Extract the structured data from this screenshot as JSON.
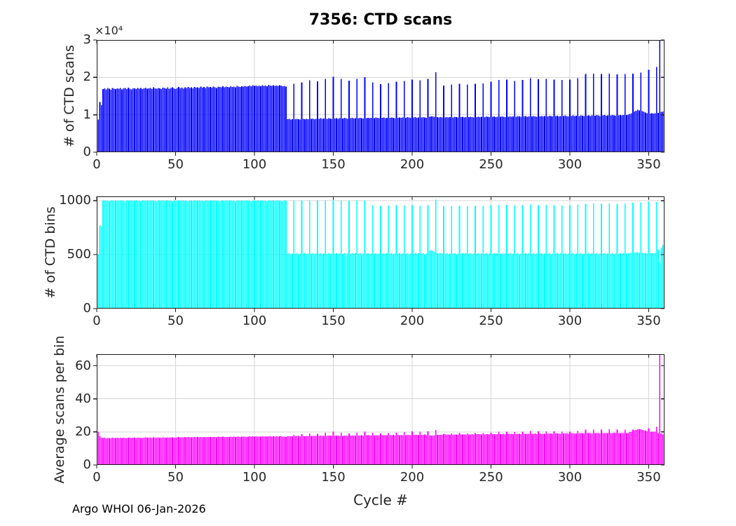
{
  "figure": {
    "footer": "Argo WHOI 06-Jan-2026",
    "background": "#ffffff"
  },
  "style": {
    "bar_blue": "#0000ff",
    "bar_cyan": "#00ffff",
    "bar_magenta": "#ff00ff",
    "axis_color": "#1a1a1a",
    "text_color": "#262626",
    "grid_color": "#d6d6d6"
  },
  "chart_data": {
    "type": "bar",
    "title": "7356: CTD scans",
    "xlabel": "Cycle #",
    "x_range": [
      0,
      360
    ],
    "x_start": 1,
    "x_ticks": [
      0,
      50,
      100,
      150,
      200,
      250,
      300,
      350
    ],
    "grid": true,
    "legend": false,
    "subplots": [
      {
        "name": "ctd-scans",
        "ylabel": "# of CTD scans",
        "y_exponent": "×10⁴",
        "ylim": [
          0,
          30000
        ],
        "ytick_values": [
          0,
          10000,
          20000,
          30000
        ],
        "ytick_labels": [
          "0",
          "1",
          "2",
          "3"
        ],
        "bar_color": "#0000ff",
        "values": [
          8700,
          13400,
          12600,
          16900,
          17100,
          16800,
          17150,
          16950,
          16700,
          17200,
          17000,
          16850,
          17100,
          16950,
          17200,
          16800,
          17050,
          17150,
          16900,
          17250,
          17000,
          16800,
          17100,
          17050,
          16900,
          17200,
          16950,
          17150,
          16850,
          17100,
          17250,
          16950,
          17050,
          17150,
          16900,
          17300,
          17050,
          16950,
          17200,
          17100,
          16900,
          17250,
          17150,
          17000,
          17300,
          16950,
          17150,
          17350,
          17050,
          16900,
          17200,
          17400,
          17100,
          17250,
          17000,
          17350,
          17150,
          17450,
          17200,
          17300,
          17100,
          17400,
          17250,
          17350,
          17150,
          17500,
          17250,
          17400,
          17200,
          17550,
          17300,
          17450,
          17250,
          17500,
          17350,
          17200,
          17550,
          17400,
          17300,
          17600,
          17350,
          17500,
          17400,
          17300,
          17650,
          17450,
          17550,
          17350,
          17700,
          17500,
          17400,
          17650,
          17550,
          17750,
          17500,
          17650,
          17800,
          17600,
          17900,
          17700,
          17850,
          17650,
          17800,
          17600,
          17950,
          17750,
          17850,
          17650,
          18000,
          17800,
          17700,
          17900,
          17750,
          17850,
          17700,
          17950,
          17800,
          17600,
          17750,
          17500,
          8800,
          8900,
          8750,
          8850,
          18300,
          8800,
          8950,
          8850,
          8750,
          18700,
          8900,
          8800,
          8950,
          8850,
          19200,
          8900,
          9000,
          8850,
          8950,
          18900,
          8950,
          9050,
          8900,
          9000,
          19600,
          8950,
          9100,
          9000,
          8900,
          20200,
          9000,
          9100,
          8950,
          9050,
          19600,
          9000,
          9150,
          9050,
          8950,
          19100,
          9050,
          9150,
          9000,
          9100,
          19600,
          9050,
          9200,
          9100,
          9000,
          20100,
          9100,
          9200,
          9050,
          9150,
          18700,
          9100,
          9250,
          9150,
          9050,
          18200,
          9150,
          9250,
          9100,
          9200,
          18500,
          9150,
          9300,
          9200,
          9100,
          18800,
          9200,
          9300,
          9150,
          9250,
          19000,
          9200,
          9350,
          9250,
          9150,
          19400,
          9250,
          9350,
          9200,
          9300,
          19200,
          9250,
          9400,
          9300,
          9200,
          19600,
          9450,
          9600,
          9550,
          9450,
          21400,
          9350,
          9300,
          9350,
          9250,
          17800,
          9300,
          9400,
          9250,
          9350,
          18100,
          9300,
          9450,
          9350,
          9250,
          18300,
          9350,
          9450,
          9300,
          9400,
          18100,
          9350,
          9500,
          9400,
          9300,
          18300,
          9400,
          9500,
          9350,
          9450,
          18400,
          9400,
          9550,
          9450,
          9350,
          18800,
          9450,
          9550,
          9400,
          9500,
          19300,
          9450,
          9600,
          9500,
          9400,
          19400,
          9500,
          9600,
          9450,
          9550,
          19000,
          9500,
          9650,
          9550,
          9450,
          19300,
          9550,
          9650,
          9500,
          9600,
          19800,
          9550,
          9700,
          9600,
          9500,
          19500,
          9600,
          9700,
          9550,
          9650,
          19600,
          9600,
          9750,
          9650,
          9550,
          19400,
          9650,
          9750,
          9600,
          9700,
          19300,
          9650,
          9800,
          9700,
          9600,
          19400,
          9700,
          9800,
          9650,
          9750,
          19800,
          9700,
          9850,
          9750,
          9650,
          20900,
          9750,
          9850,
          9700,
          9800,
          21000,
          9750,
          9900,
          9800,
          9700,
          20900,
          9800,
          9900,
          9750,
          9850,
          21000,
          9800,
          9950,
          9850,
          9750,
          20800,
          9850,
          9950,
          9800,
          9900,
          20900,
          9900,
          10000,
          10200,
          10400,
          21000,
          10900,
          11100,
          11300,
          11200,
          21300,
          11000,
          10800,
          10600,
          10400,
          22000,
          10300,
          10400,
          10300,
          10400,
          22800,
          10500,
          30000,
          10800,
          10900,
          10600
        ]
      },
      {
        "name": "ctd-bins",
        "ylabel": "# of CTD bins",
        "ylim": [
          0,
          1040
        ],
        "ytick_values": [
          0,
          500,
          1000
        ],
        "ytick_labels": [
          "0",
          "500",
          "1000"
        ],
        "bar_color": "#00ffff",
        "values": [
          505,
          770,
          765,
          1000,
          1004,
          998,
          1002,
          996,
          1005,
          1000,
          997,
          1003,
          999,
          1000,
          1004,
          998,
          1002,
          996,
          1005,
          1000,
          997,
          1003,
          999,
          1000,
          1004,
          998,
          1002,
          996,
          1005,
          1000,
          997,
          1003,
          999,
          1000,
          1004,
          998,
          1002,
          996,
          1005,
          1000,
          997,
          1003,
          999,
          1000,
          1004,
          998,
          1002,
          996,
          1005,
          1000,
          997,
          1003,
          999,
          1000,
          1004,
          998,
          1002,
          996,
          1005,
          1000,
          997,
          1003,
          999,
          1000,
          1004,
          998,
          1002,
          996,
          1005,
          1000,
          997,
          1003,
          999,
          1000,
          1004,
          998,
          1002,
          996,
          1005,
          1000,
          997,
          1003,
          999,
          1000,
          1004,
          998,
          1002,
          996,
          1005,
          1000,
          997,
          1003,
          999,
          1000,
          1004,
          998,
          1002,
          996,
          1005,
          1000,
          997,
          1003,
          999,
          1000,
          1004,
          998,
          1002,
          996,
          1005,
          1000,
          997,
          1003,
          999,
          1000,
          1004,
          998,
          1002,
          996,
          1005,
          1000,
          506,
          512,
          504,
          510,
          1002,
          507,
          513,
          505,
          509,
          1000,
          508,
          514,
          506,
          511,
          1004,
          508,
          512,
          506,
          510,
          1001,
          507,
          513,
          505,
          511,
          1003,
          508,
          514,
          506,
          510,
          1005,
          506,
          512,
          504,
          510,
          1002,
          507,
          513,
          505,
          509,
          1000,
          508,
          514,
          506,
          512,
          1004,
          507,
          513,
          505,
          511,
          1002,
          506,
          512,
          504,
          510,
          958,
          507,
          513,
          505,
          509,
          952,
          508,
          514,
          506,
          512,
          956,
          507,
          513,
          505,
          511,
          960,
          506,
          512,
          504,
          510,
          955,
          507,
          513,
          505,
          509,
          958,
          508,
          514,
          506,
          512,
          953,
          507,
          513,
          505,
          511,
          960,
          530,
          540,
          535,
          525,
          1010,
          515,
          510,
          512,
          508,
          948,
          506,
          512,
          504,
          510,
          950,
          507,
          513,
          505,
          509,
          952,
          508,
          514,
          506,
          512,
          949,
          507,
          513,
          505,
          511,
          951,
          506,
          512,
          504,
          510,
          953,
          507,
          513,
          505,
          509,
          958,
          508,
          514,
          506,
          512,
          960,
          507,
          513,
          505,
          511,
          962,
          506,
          512,
          504,
          510,
          956,
          507,
          513,
          505,
          509,
          960,
          508,
          514,
          506,
          512,
          964,
          507,
          513,
          505,
          511,
          960,
          506,
          512,
          504,
          510,
          962,
          507,
          513,
          505,
          509,
          958,
          508,
          514,
          506,
          512,
          956,
          507,
          513,
          505,
          511,
          960,
          506,
          512,
          504,
          510,
          966,
          507,
          513,
          505,
          509,
          972,
          508,
          514,
          506,
          512,
          975,
          507,
          513,
          505,
          511,
          972,
          506,
          512,
          504,
          510,
          974,
          507,
          513,
          505,
          509,
          970,
          508,
          514,
          506,
          512,
          976,
          510,
          515,
          512,
          516,
          980,
          518,
          522,
          520,
          518,
          985,
          516,
          514,
          512,
          510,
          990,
          512,
          515,
          513,
          516,
          988,
          545,
          430,
          565,
          590,
          555
        ]
      },
      {
        "name": "avg-scans-per-bin",
        "ylabel": "Average scans per bin",
        "ylim": [
          0,
          67
        ],
        "ytick_values": [
          0,
          20,
          40,
          60
        ],
        "ytick_labels": [
          "0",
          "20",
          "40",
          "60"
        ],
        "bar_color": "#ff00ff",
        "values": [
          20.2,
          17.4,
          16.5,
          16.3,
          16.5,
          16.2,
          16.4,
          16.3,
          16.2,
          16.5,
          16.4,
          16.3,
          16.5,
          16.4,
          16.6,
          16.3,
          16.5,
          16.4,
          16.3,
          16.6,
          16.5,
          16.4,
          16.6,
          16.5,
          16.4,
          16.6,
          16.5,
          16.4,
          16.3,
          16.6,
          16.7,
          16.5,
          16.5,
          16.6,
          16.4,
          16.7,
          16.5,
          16.5,
          16.7,
          16.6,
          16.4,
          16.7,
          16.6,
          16.5,
          16.8,
          16.5,
          16.7,
          16.8,
          16.6,
          16.5,
          16.7,
          16.9,
          16.6,
          16.8,
          16.6,
          16.9,
          16.7,
          16.9,
          16.7,
          16.8,
          16.7,
          16.9,
          16.8,
          16.9,
          16.7,
          17.0,
          16.8,
          16.9,
          16.8,
          17.0,
          16.9,
          17.0,
          16.8,
          17.0,
          16.9,
          16.8,
          17.1,
          16.9,
          16.9,
          17.1,
          17.0,
          17.0,
          16.9,
          16.9,
          17.2,
          17.0,
          17.1,
          16.9,
          17.2,
          17.1,
          17.0,
          17.2,
          17.1,
          17.2,
          17.0,
          17.2,
          17.3,
          17.1,
          17.3,
          17.2,
          17.3,
          17.1,
          17.2,
          17.1,
          17.4,
          17.2,
          17.3,
          17.1,
          17.4,
          17.3,
          17.2,
          17.4,
          17.2,
          17.3,
          17.2,
          17.4,
          17.3,
          17.1,
          17.2,
          17.0,
          17.4,
          17.4,
          17.4,
          17.4,
          18.3,
          17.4,
          17.5,
          17.5,
          17.2,
          18.7,
          17.5,
          17.3,
          17.7,
          17.4,
          19.1,
          17.5,
          17.7,
          17.5,
          17.6,
          18.9,
          17.7,
          17.8,
          17.6,
          17.6,
          19.5,
          17.6,
          17.9,
          17.8,
          17.5,
          20.1,
          17.8,
          17.8,
          17.8,
          17.7,
          19.6,
          17.7,
          17.9,
          17.9,
          17.6,
          19.1,
          17.8,
          17.8,
          17.8,
          17.8,
          19.5,
          17.8,
          17.9,
          18.0,
          17.6,
          20.1,
          18.0,
          18.0,
          18.0,
          17.9,
          19.5,
          17.9,
          18.0,
          18.1,
          17.8,
          19.1,
          18.0,
          18.0,
          18.0,
          18.0,
          19.3,
          18.0,
          18.1,
          18.2,
          17.8,
          19.6,
          18.2,
          18.1,
          18.2,
          18.1,
          19.9,
          18.1,
          18.2,
          18.3,
          18.0,
          20.3,
          18.2,
          18.2,
          18.2,
          18.2,
          20.1,
          18.2,
          18.3,
          18.4,
          18.0,
          20.4,
          17.8,
          17.8,
          17.9,
          18.0,
          21.2,
          18.2,
          18.2,
          18.3,
          18.2,
          18.8,
          18.4,
          18.4,
          18.4,
          18.3,
          19.1,
          18.3,
          18.4,
          18.5,
          18.2,
          19.2,
          18.4,
          18.4,
          18.4,
          18.4,
          19.1,
          18.4,
          18.5,
          18.6,
          18.2,
          19.2,
          18.6,
          18.6,
          18.6,
          18.5,
          19.3,
          18.5,
          18.6,
          18.7,
          18.4,
          19.6,
          18.6,
          18.6,
          18.6,
          18.6,
          20.1,
          18.6,
          18.7,
          18.8,
          18.4,
          20.2,
          18.8,
          18.8,
          18.8,
          18.7,
          19.9,
          18.7,
          18.8,
          18.9,
          18.6,
          20.1,
          18.8,
          18.8,
          18.8,
          18.8,
          20.5,
          18.8,
          18.9,
          19.0,
          18.6,
          20.3,
          19.0,
          18.9,
          18.9,
          18.9,
          20.4,
          18.8,
          19.0,
          19.1,
          18.8,
          20.3,
          19.0,
          19.0,
          19.0,
          18.9,
          20.2,
          19.0,
          19.1,
          19.2,
          18.8,
          20.2,
          19.2,
          19.1,
          19.1,
          19.1,
          20.5,
          19.1,
          19.2,
          19.3,
          19.0,
          21.5,
          19.2,
          19.2,
          19.2,
          19.1,
          21.5,
          19.2,
          19.3,
          19.4,
          19.0,
          21.5,
          19.4,
          19.3,
          19.3,
          19.3,
          21.6,
          19.3,
          19.4,
          19.5,
          19.2,
          21.4,
          19.4,
          19.4,
          19.4,
          19.3,
          21.4,
          19.4,
          19.4,
          19.9,
          20.1,
          21.4,
          21.0,
          21.3,
          21.7,
          21.6,
          21.6,
          21.3,
          21.0,
          20.7,
          20.4,
          22.2,
          20.1,
          20.2,
          20.1,
          20.2,
          23.1,
          19.3,
          69.8,
          19.1,
          18.5,
          19.1
        ]
      }
    ]
  }
}
